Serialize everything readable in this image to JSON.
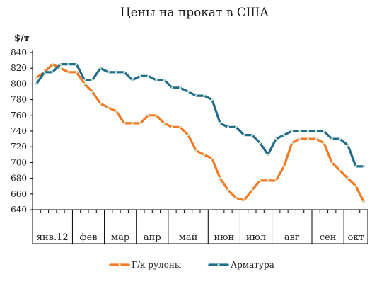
{
  "chart_data": {
    "type": "line",
    "title": "Цены на прокат в США",
    "ylabel": "$/т",
    "xlabel": "",
    "ylim": [
      640,
      840
    ],
    "yticks": [
      640,
      660,
      680,
      700,
      720,
      740,
      760,
      780,
      800,
      820,
      840
    ],
    "grid": false,
    "legend_position": "bottom",
    "months": [
      "янв.12",
      "фев",
      "мар",
      "апр",
      "май",
      "июн",
      "июл",
      "авг",
      "сен",
      "окт"
    ],
    "weeks_per_month": [
      5,
      4,
      4,
      4,
      5,
      4,
      4,
      5,
      4,
      3
    ],
    "colors": {
      "Г/к рулоны": "#F47920",
      "Арматура": "#1F6C8C",
      "marker": "#c8e6c8",
      "axis": "#000000"
    },
    "series": [
      {
        "name": "Г/к рулоны",
        "values": [
          808,
          815,
          825,
          820,
          815,
          815,
          800,
          790,
          775,
          770,
          765,
          750,
          750,
          750,
          760,
          760,
          750,
          745,
          745,
          735,
          715,
          710,
          705,
          680,
          665,
          655,
          652,
          665,
          677,
          677,
          677,
          695,
          725,
          730,
          730,
          730,
          725,
          700,
          690,
          680,
          670,
          650
        ]
      },
      {
        "name": "Арматура",
        "values": [
          800,
          815,
          815,
          825,
          825,
          825,
          805,
          805,
          820,
          815,
          815,
          815,
          805,
          810,
          810,
          805,
          805,
          795,
          795,
          790,
          785,
          785,
          780,
          750,
          745,
          745,
          735,
          735,
          725,
          710,
          730,
          735,
          740,
          740,
          740,
          740,
          740,
          730,
          730,
          722,
          695,
          695
        ]
      }
    ]
  }
}
